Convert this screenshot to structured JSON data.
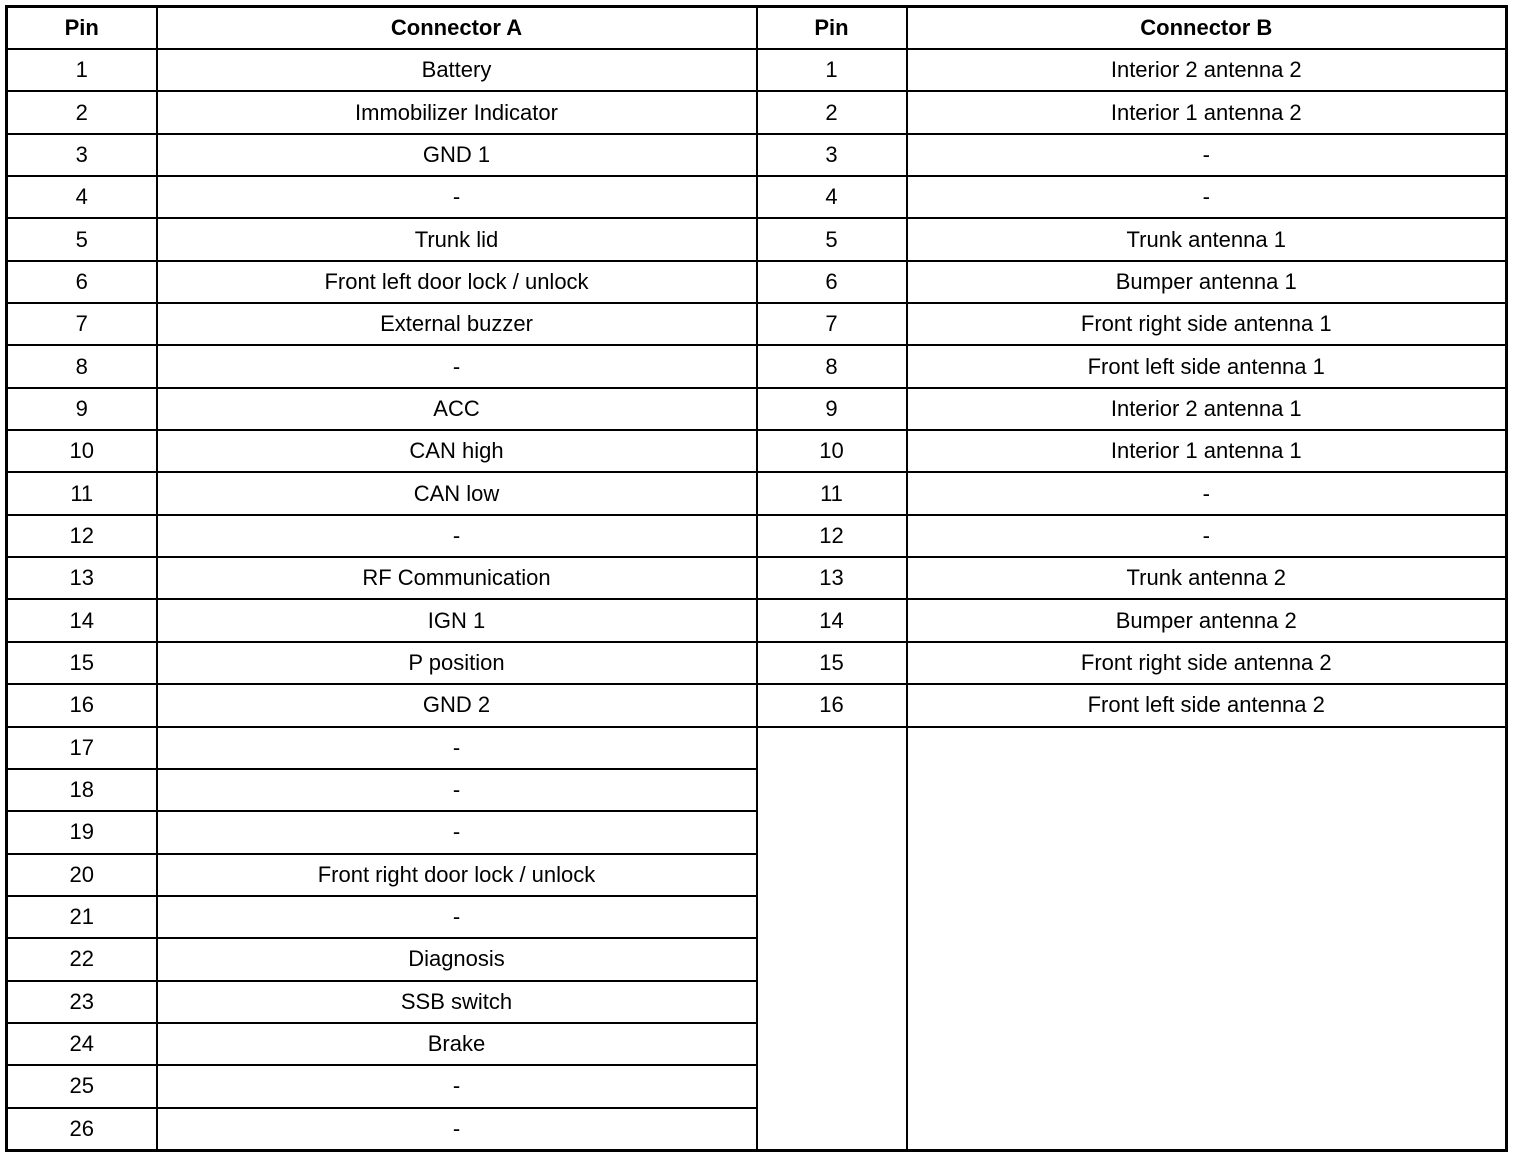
{
  "headers": [
    "Pin",
    "Connector A",
    "Pin",
    "Connector B"
  ],
  "connector_a": [
    [
      "1",
      "Battery"
    ],
    [
      "2",
      "Immobilizer Indicator"
    ],
    [
      "3",
      "GND 1"
    ],
    [
      "4",
      "-"
    ],
    [
      "5",
      "Trunk lid"
    ],
    [
      "6",
      "Front left door lock / unlock"
    ],
    [
      "7",
      "External buzzer"
    ],
    [
      "8",
      "-"
    ],
    [
      "9",
      "ACC"
    ],
    [
      "10",
      "CAN high"
    ],
    [
      "11",
      "CAN low"
    ],
    [
      "12",
      "-"
    ],
    [
      "13",
      "RF Communication"
    ],
    [
      "14",
      "IGN 1"
    ],
    [
      "15",
      "P position"
    ],
    [
      "16",
      "GND 2"
    ],
    [
      "17",
      "-"
    ],
    [
      "18",
      "-"
    ],
    [
      "19",
      "-"
    ],
    [
      "20",
      "Front right door lock / unlock"
    ],
    [
      "21",
      "-"
    ],
    [
      "22",
      "Diagnosis"
    ],
    [
      "23",
      "SSB switch"
    ],
    [
      "24",
      "Brake"
    ],
    [
      "25",
      "-"
    ],
    [
      "26",
      "-"
    ]
  ],
  "connector_b": [
    [
      "1",
      "Interior 2 antenna 2"
    ],
    [
      "2",
      "Interior 1 antenna 2"
    ],
    [
      "3",
      "-"
    ],
    [
      "4",
      "-"
    ],
    [
      "5",
      "Trunk antenna 1"
    ],
    [
      "6",
      "Bumper antenna 1"
    ],
    [
      "7",
      "Front right side antenna 1"
    ],
    [
      "8",
      "Front left side antenna 1"
    ],
    [
      "9",
      "Interior 2 antenna 1"
    ],
    [
      "10",
      "Interior 1 antenna 1"
    ],
    [
      "11",
      "-"
    ],
    [
      "12",
      "-"
    ],
    [
      "13",
      "Trunk antenna 2"
    ],
    [
      "14",
      "Bumper antenna 2"
    ],
    [
      "15",
      "Front right side antenna 2"
    ],
    [
      "16",
      "Front left side antenna 2"
    ]
  ]
}
